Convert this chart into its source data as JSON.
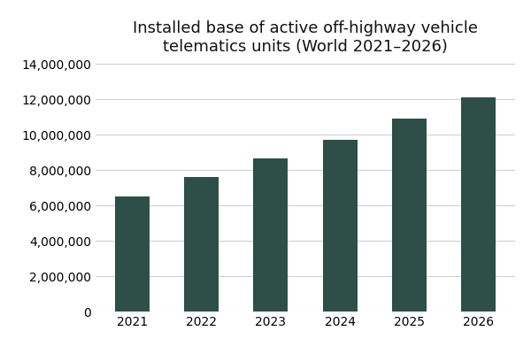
{
  "title": "Installed base of active off-highway vehicle\ntelematics units (World 2021–2026)",
  "categories": [
    "2021",
    "2022",
    "2023",
    "2024",
    "2025",
    "2026"
  ],
  "values": [
    6500000,
    7600000,
    8650000,
    9700000,
    10900000,
    12100000
  ],
  "bar_color": "#2d4f47",
  "ylim": [
    0,
    14000000
  ],
  "yticks": [
    0,
    2000000,
    4000000,
    6000000,
    8000000,
    10000000,
    12000000,
    14000000
  ],
  "background_color": "#ffffff",
  "grid_color": "#d0d0d0",
  "title_fontsize": 13,
  "tick_fontsize": 10,
  "bar_width": 0.5
}
